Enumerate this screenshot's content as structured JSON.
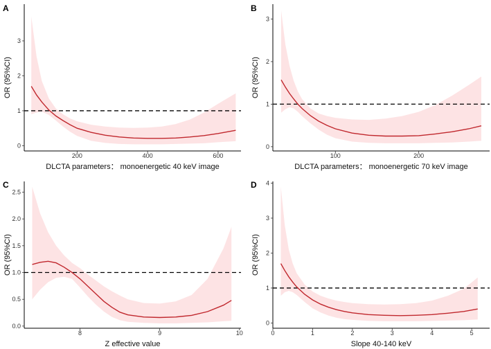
{
  "chart_data": [
    {
      "id": "A",
      "panel_label": "A",
      "type": "line",
      "xlabel": "DLCTA parameters： monoenergetic 40 keV image",
      "ylabel": "OR (95%CI)",
      "xlim": [
        50,
        665
      ],
      "ylim": [
        -0.15,
        4.05
      ],
      "xticks": [
        200,
        400,
        600
      ],
      "yticks": [
        0,
        1,
        2,
        3
      ],
      "reference_line": 1,
      "series": [
        {
          "name": "OR",
          "x": [
            70,
            85,
            100,
            120,
            140,
            160,
            180,
            200,
            240,
            280,
            320,
            360,
            400,
            440,
            480,
            520,
            560,
            600,
            650
          ],
          "y": [
            1.7,
            1.45,
            1.25,
            1.02,
            0.85,
            0.72,
            0.6,
            0.5,
            0.38,
            0.3,
            0.25,
            0.22,
            0.21,
            0.21,
            0.22,
            0.25,
            0.29,
            0.35,
            0.44
          ]
        },
        {
          "name": "95% CI lower",
          "x": [
            70,
            85,
            100,
            120,
            140,
            160,
            180,
            200,
            240,
            280,
            320,
            360,
            400,
            440,
            480,
            520,
            560,
            600,
            650
          ],
          "y": [
            0.9,
            0.95,
            0.98,
            0.88,
            0.72,
            0.55,
            0.4,
            0.28,
            0.14,
            0.08,
            0.05,
            0.04,
            0.04,
            0.04,
            0.05,
            0.06,
            0.07,
            0.1,
            0.13
          ]
        },
        {
          "name": "95% CI upper",
          "x": [
            70,
            85,
            100,
            120,
            140,
            160,
            180,
            200,
            240,
            280,
            320,
            360,
            400,
            440,
            480,
            520,
            560,
            600,
            650
          ],
          "y": [
            3.7,
            2.55,
            1.85,
            1.35,
            1.06,
            0.9,
            0.78,
            0.7,
            0.6,
            0.55,
            0.52,
            0.51,
            0.52,
            0.55,
            0.62,
            0.75,
            0.95,
            1.2,
            1.5
          ]
        }
      ]
    },
    {
      "id": "B",
      "panel_label": "B",
      "type": "line",
      "xlabel": "DLCTA parameters： monoenergetic 70 keV image",
      "ylabel": "OR (95%CI)",
      "xlim": [
        25,
        285
      ],
      "ylim": [
        -0.1,
        3.35
      ],
      "xticks": [
        100,
        200
      ],
      "yticks": [
        0,
        1,
        2,
        3
      ],
      "reference_line": 1,
      "series": [
        {
          "name": "OR",
          "x": [
            35,
            40,
            45,
            50,
            55,
            60,
            70,
            80,
            90,
            100,
            120,
            140,
            160,
            180,
            200,
            220,
            240,
            260,
            275
          ],
          "y": [
            1.57,
            1.4,
            1.25,
            1.12,
            1.0,
            0.9,
            0.73,
            0.6,
            0.5,
            0.42,
            0.32,
            0.27,
            0.25,
            0.25,
            0.26,
            0.3,
            0.35,
            0.42,
            0.49
          ]
        },
        {
          "name": "95% CI lower",
          "x": [
            35,
            40,
            45,
            50,
            55,
            60,
            70,
            80,
            90,
            100,
            120,
            140,
            160,
            180,
            200,
            220,
            240,
            260,
            275
          ],
          "y": [
            0.8,
            0.88,
            0.93,
            0.9,
            0.82,
            0.72,
            0.55,
            0.4,
            0.28,
            0.2,
            0.12,
            0.09,
            0.08,
            0.08,
            0.08,
            0.09,
            0.1,
            0.12,
            0.14
          ]
        },
        {
          "name": "95% CI upper",
          "x": [
            35,
            40,
            45,
            50,
            55,
            60,
            70,
            80,
            90,
            100,
            120,
            140,
            160,
            180,
            200,
            220,
            240,
            260,
            275
          ],
          "y": [
            3.2,
            2.4,
            1.9,
            1.55,
            1.3,
            1.12,
            0.9,
            0.78,
            0.72,
            0.68,
            0.64,
            0.63,
            0.66,
            0.72,
            0.82,
            0.98,
            1.2,
            1.45,
            1.65
          ]
        }
      ]
    },
    {
      "id": "C",
      "panel_label": "C",
      "type": "line",
      "xlabel": "Z effective value",
      "ylabel": "OR (95%CI)",
      "xlim": [
        7.3,
        10.02
      ],
      "ylim": [
        -0.04,
        2.7
      ],
      "xticks": [
        8,
        9,
        10
      ],
      "xtick_labels": [
        "8",
        "9",
        "10"
      ],
      "yticks": [
        0.0,
        0.5,
        1.0,
        1.5,
        2.0,
        2.5
      ],
      "ytick_labels": [
        "0.0",
        "0.5",
        "1.0",
        "1.5",
        "2.0",
        "2.5"
      ],
      "reference_line": 1,
      "series": [
        {
          "name": "OR",
          "x": [
            7.4,
            7.5,
            7.6,
            7.7,
            7.8,
            7.9,
            8.0,
            8.1,
            8.2,
            8.3,
            8.4,
            8.5,
            8.6,
            8.8,
            9.0,
            9.2,
            9.4,
            9.6,
            9.8,
            9.9
          ],
          "y": [
            1.15,
            1.19,
            1.21,
            1.18,
            1.1,
            1.0,
            0.88,
            0.74,
            0.6,
            0.46,
            0.35,
            0.26,
            0.21,
            0.17,
            0.16,
            0.17,
            0.2,
            0.27,
            0.39,
            0.48
          ]
        },
        {
          "name": "95% CI lower",
          "x": [
            7.4,
            7.5,
            7.6,
            7.7,
            7.8,
            7.9,
            8.0,
            8.1,
            8.2,
            8.3,
            8.4,
            8.5,
            8.6,
            8.8,
            9.0,
            9.2,
            9.4,
            9.6,
            9.8,
            9.9
          ],
          "y": [
            0.5,
            0.68,
            0.82,
            0.9,
            0.92,
            0.88,
            0.72,
            0.55,
            0.4,
            0.27,
            0.17,
            0.11,
            0.08,
            0.06,
            0.05,
            0.05,
            0.06,
            0.07,
            0.09,
            0.1
          ]
        },
        {
          "name": "95% CI upper",
          "x": [
            7.4,
            7.5,
            7.6,
            7.7,
            7.8,
            7.9,
            8.0,
            8.1,
            8.2,
            8.3,
            8.4,
            8.5,
            8.6,
            8.8,
            9.0,
            9.2,
            9.4,
            9.6,
            9.8,
            9.9
          ],
          "y": [
            2.6,
            2.1,
            1.75,
            1.5,
            1.32,
            1.18,
            1.08,
            0.96,
            0.85,
            0.74,
            0.65,
            0.57,
            0.5,
            0.43,
            0.42,
            0.46,
            0.58,
            0.88,
            1.45,
            1.85
          ]
        }
      ]
    },
    {
      "id": "D",
      "panel_label": "D",
      "type": "line",
      "xlabel": "Slope 40-140 keV",
      "ylabel": "OR (95%CI)",
      "xlim": [
        0,
        5.45
      ],
      "ylim": [
        -0.15,
        4.05
      ],
      "xticks": [
        0,
        1,
        2,
        3,
        4,
        5
      ],
      "yticks": [
        0,
        1,
        2,
        3,
        4
      ],
      "reference_line": 1,
      "series": [
        {
          "name": "OR",
          "x": [
            0.2,
            0.3,
            0.4,
            0.5,
            0.6,
            0.8,
            1.0,
            1.2,
            1.4,
            1.6,
            1.8,
            2.0,
            2.4,
            2.8,
            3.2,
            3.6,
            4.0,
            4.4,
            4.8,
            5.15
          ],
          "y": [
            1.7,
            1.5,
            1.32,
            1.17,
            1.03,
            0.82,
            0.66,
            0.54,
            0.45,
            0.38,
            0.33,
            0.29,
            0.24,
            0.22,
            0.21,
            0.22,
            0.24,
            0.28,
            0.33,
            0.4
          ]
        },
        {
          "name": "95% CI lower",
          "x": [
            0.2,
            0.3,
            0.4,
            0.5,
            0.6,
            0.8,
            1.0,
            1.2,
            1.4,
            1.6,
            1.8,
            2.0,
            2.4,
            2.8,
            3.2,
            3.6,
            4.0,
            4.4,
            4.8,
            5.15
          ],
          "y": [
            0.78,
            0.88,
            0.92,
            0.88,
            0.8,
            0.6,
            0.42,
            0.3,
            0.21,
            0.15,
            0.11,
            0.09,
            0.06,
            0.05,
            0.05,
            0.05,
            0.06,
            0.07,
            0.08,
            0.1
          ]
        },
        {
          "name": "95% CI upper",
          "x": [
            0.2,
            0.3,
            0.4,
            0.5,
            0.6,
            0.8,
            1.0,
            1.2,
            1.4,
            1.6,
            1.8,
            2.0,
            2.4,
            2.8,
            3.2,
            3.6,
            4.0,
            4.4,
            4.8,
            5.15
          ],
          "y": [
            3.9,
            2.8,
            2.1,
            1.7,
            1.42,
            1.1,
            0.9,
            0.78,
            0.7,
            0.64,
            0.6,
            0.57,
            0.54,
            0.53,
            0.54,
            0.57,
            0.64,
            0.78,
            0.98,
            1.3
          ]
        }
      ]
    }
  ]
}
